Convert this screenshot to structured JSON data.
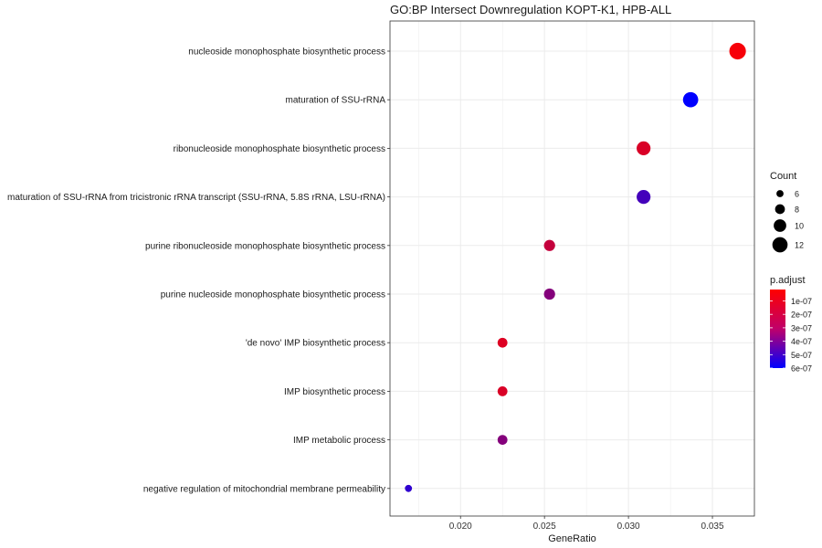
{
  "chart_data": {
    "type": "scatter",
    "title": "GO:BP Intersect Downregulation KOPT-K1, HPB-ALL",
    "xlabel": "GeneRatio",
    "ylabel": "",
    "xlim": [
      0.0158,
      0.0375
    ],
    "x_ticks": [
      "0.020",
      "0.025",
      "0.030",
      "0.035"
    ],
    "x_tick_values": [
      0.02,
      0.025,
      0.03,
      0.035
    ],
    "grid": true,
    "legend_position": "right",
    "categories": [
      "nucleoside monophosphate biosynthetic process",
      "maturation of SSU-rRNA",
      "ribonucleoside monophosphate biosynthetic process",
      "maturation of SSU-rRNA from tricistronic rRNA transcript (SSU-rRNA, 5.8S rRNA, LSU-rRNA)",
      "purine ribonucleoside monophosphate biosynthetic process",
      "purine nucleoside monophosphate biosynthetic process",
      "'de novo' IMP biosynthetic process",
      "IMP biosynthetic process",
      "IMP metabolic process",
      "negative regulation of mitochondrial membrane permeability"
    ],
    "gene_ratio": [
      0.0365,
      0.0337,
      0.0309,
      0.0309,
      0.0253,
      0.0253,
      0.0225,
      0.0225,
      0.0225,
      0.0169
    ],
    "count": [
      13,
      12,
      11,
      11,
      9,
      9,
      8,
      8,
      8,
      6
    ],
    "p_adjust": [
      2e-08,
      6e-07,
      9e-08,
      4.4e-07,
      1.4e-07,
      2.9e-07,
      8e-08,
      9e-08,
      2.9e-07,
      4.9e-07
    ],
    "size_legend": {
      "title": "Count",
      "values": [
        6,
        8,
        10,
        12
      ],
      "labels": [
        "6",
        "8",
        "10",
        "12"
      ]
    },
    "color_legend": {
      "title": "p.adjust",
      "min": 0.0,
      "max": 6e-07,
      "labels": [
        "1e-07",
        "2e-07",
        "3e-07",
        "4e-07",
        "5e-07",
        "6e-07"
      ],
      "label_values": [
        1e-07,
        2e-07,
        3e-07,
        4e-07,
        5e-07,
        6e-07
      ],
      "low_color": "#ff0000",
      "high_color": "#0000ff"
    }
  }
}
